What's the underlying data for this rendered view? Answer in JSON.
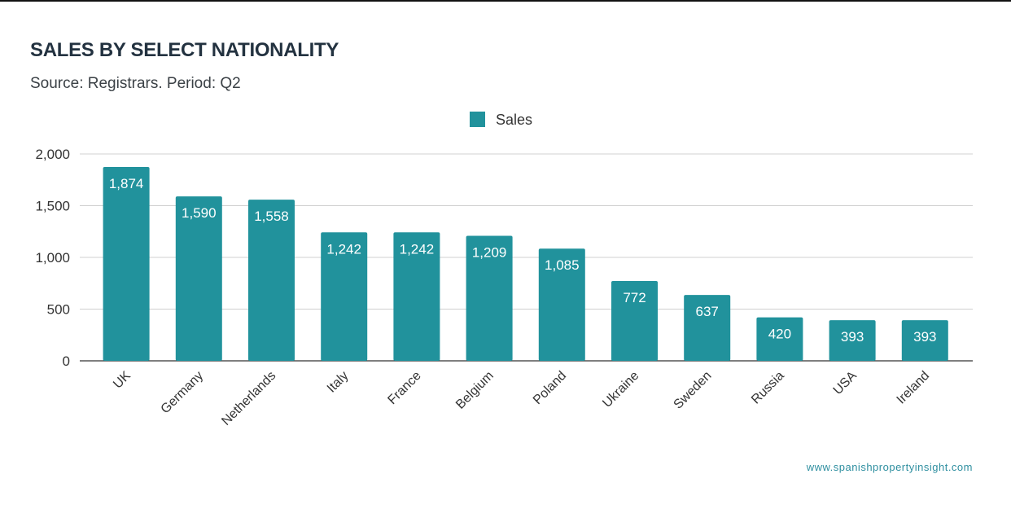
{
  "chart_data": {
    "type": "bar",
    "title": "SALES BY SELECT NATIONALITY",
    "subtitle": "Source: Registrars. Period: Q2",
    "categories": [
      "UK",
      "Germany",
      "Netherlands",
      "Italy",
      "France",
      "Belgium",
      "Poland",
      "Ukraine",
      "Sweden",
      "Russia",
      "USA",
      "Ireland"
    ],
    "series": [
      {
        "name": "Sales",
        "values": [
          1874,
          1590,
          1558,
          1242,
          1242,
          1209,
          1085,
          772,
          637,
          420,
          393,
          393
        ],
        "color": "#21929c"
      }
    ],
    "data_labels": [
      "1,874",
      "1,590",
      "1,558",
      "1,242",
      "1,242",
      "1,209",
      "1,085",
      "772",
      "637",
      "420",
      "393",
      "393"
    ],
    "ylim": [
      0,
      2000
    ],
    "yticks": [
      0,
      500,
      1000,
      1500,
      2000
    ],
    "ytick_labels": [
      "0",
      "500",
      "1,000",
      "1,500",
      "2,000"
    ],
    "grid": true,
    "legend": "top-center",
    "xlabel": "",
    "ylabel": ""
  },
  "credit": "www.spanishpropertyinsight.com"
}
